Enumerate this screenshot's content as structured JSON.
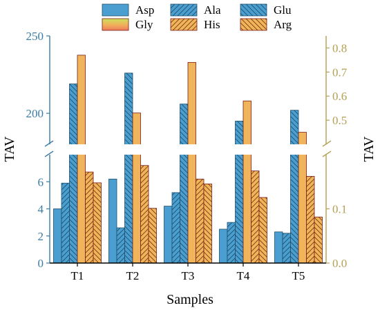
{
  "chart_data": {
    "type": "bar",
    "categories": [
      "T1",
      "T2",
      "T3",
      "T4",
      "T5"
    ],
    "xlabel": "Samples",
    "ylabel_left": "TAV",
    "ylabel_right": "TAV",
    "left_axis": {
      "broken": true,
      "lower_range": [
        0,
        8
      ],
      "upper_range": [
        180,
        250
      ],
      "lower_ticks": [
        "0",
        "2",
        "4",
        "6"
      ],
      "upper_ticks": [
        "200",
        "250"
      ],
      "color": "#3a7ca5"
    },
    "right_axis": {
      "broken": true,
      "lower_range": [
        0,
        0.2
      ],
      "upper_range": [
        0.4,
        0.85
      ],
      "lower_ticks": [
        "0.0",
        "0.1"
      ],
      "upper_ticks": [
        "0.5",
        "0.6",
        "0.7",
        "0.8"
      ],
      "color": "#b5a052"
    },
    "series": [
      {
        "name": "Asp",
        "axis": "left",
        "values": [
          4.0,
          6.2,
          4.2,
          2.5,
          2.3
        ],
        "color": "#4a9fd0",
        "pattern": "none"
      },
      {
        "name": "Ala",
        "axis": "left",
        "values": [
          5.9,
          2.6,
          5.2,
          3.0,
          2.2
        ],
        "color": "#4a9fd0",
        "pattern": "up"
      },
      {
        "name": "Glu",
        "axis": "left",
        "values": [
          219,
          226,
          206,
          195,
          202
        ],
        "color": "#4a9fd0",
        "pattern": "down"
      },
      {
        "name": "Gly",
        "axis": "right",
        "values": [
          0.77,
          0.53,
          0.74,
          0.58,
          0.45
        ],
        "color": "#f0b45a",
        "pattern": "none"
      },
      {
        "name": "His",
        "axis": "right",
        "values": [
          0.168,
          0.18,
          0.155,
          0.17,
          0.16
        ],
        "color": "#f0b45a",
        "pattern": "up"
      },
      {
        "name": "Arg",
        "axis": "right",
        "values": [
          0.148,
          0.101,
          0.146,
          0.121,
          0.085
        ],
        "color": "#f0b45a",
        "pattern": "down"
      }
    ]
  }
}
